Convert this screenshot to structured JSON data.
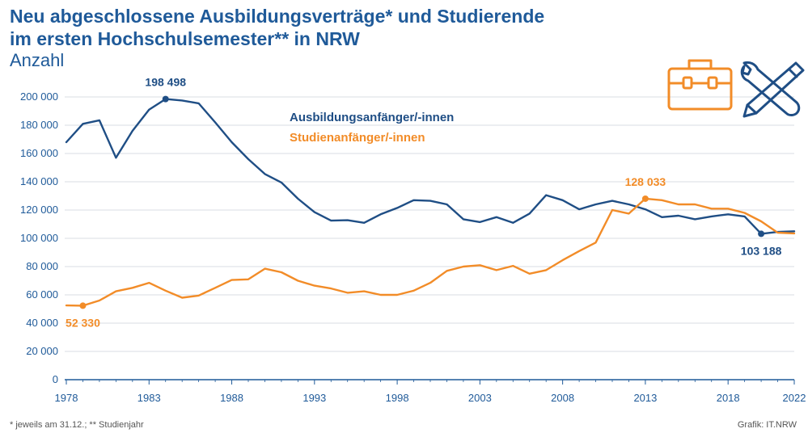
{
  "header": {
    "title_line1": "Neu abgeschlossene Ausbildungsverträge* und Studierende",
    "title_line2": "im ersten Hochschulsemester** in NRW",
    "subtitle": "Anzahl"
  },
  "footer": {
    "footnote": "* jeweils am 31.12.; ** Studienjahr",
    "credit": "Grafik: IT.NRW"
  },
  "icons": [
    "briefcase-icon",
    "tools-icon"
  ],
  "colors": {
    "blue": "#1f4e85",
    "orange": "#f28c28",
    "axis": "#1f5a99",
    "grid": "#d9dde3"
  },
  "chart_data": {
    "type": "line",
    "title": "Neu abgeschlossene Ausbildungsverträge* und Studierende im ersten Hochschulsemester** in NRW",
    "ylabel": "Anzahl",
    "xlim": [
      1978,
      2022
    ],
    "ylim": [
      0,
      200000
    ],
    "yticks": [
      0,
      20000,
      40000,
      60000,
      80000,
      100000,
      120000,
      140000,
      160000,
      180000,
      200000
    ],
    "ytick_labels": [
      "0",
      "20 000",
      "40 000",
      "60 000",
      "80 000",
      "100 000",
      "120 000",
      "140 000",
      "160 000",
      "180 000",
      "200 000"
    ],
    "xticks": [
      1978,
      1983,
      1988,
      1993,
      1998,
      2003,
      2008,
      2013,
      2018,
      2022
    ],
    "grid": true,
    "legend_position": "top-center",
    "series": [
      {
        "name": "Ausbildungsanfänger/-innen",
        "x": [
          1978,
          1979,
          1980,
          1981,
          1982,
          1983,
          1984,
          1985,
          1986,
          1987,
          1988,
          1989,
          1990,
          1991,
          1992,
          1993,
          1994,
          1995,
          1996,
          1997,
          1998,
          1999,
          2000,
          2001,
          2002,
          2003,
          2004,
          2005,
          2006,
          2007,
          2008,
          2009,
          2010,
          2011,
          2012,
          2013,
          2014,
          2015,
          2016,
          2017,
          2018,
          2019,
          2020,
          2021,
          2022
        ],
        "values": [
          168000,
          181000,
          183500,
          157000,
          176000,
          191000,
          198498,
          197500,
          195500,
          182000,
          168000,
          156000,
          145500,
          139500,
          128000,
          118500,
          112500,
          112800,
          111000,
          117000,
          121500,
          127000,
          126500,
          124000,
          113500,
          111500,
          115000,
          111000,
          117500,
          130500,
          127000,
          120500,
          124000,
          126500,
          124000,
          120500,
          115000,
          116000,
          113500,
          115500,
          117000,
          115500,
          103188,
          104500,
          105000
        ]
      },
      {
        "name": "Studienanfänger/-innen",
        "x": [
          1978,
          1979,
          1980,
          1981,
          1982,
          1983,
          1984,
          1985,
          1986,
          1987,
          1988,
          1989,
          1990,
          1991,
          1992,
          1993,
          1994,
          1995,
          1996,
          1997,
          1998,
          1999,
          2000,
          2001,
          2002,
          2003,
          2004,
          2005,
          2006,
          2007,
          2008,
          2009,
          2010,
          2011,
          2012,
          2013,
          2014,
          2015,
          2016,
          2017,
          2018,
          2019,
          2020,
          2021,
          2022
        ],
        "values": [
          52500,
          52330,
          56000,
          62500,
          65000,
          68500,
          63000,
          58000,
          59500,
          65000,
          70500,
          71000,
          78500,
          76000,
          70000,
          66500,
          64500,
          61500,
          62500,
          60000,
          60000,
          63000,
          68500,
          77000,
          80000,
          81000,
          77500,
          80500,
          75000,
          77500,
          84500,
          91000,
          97000,
          120000,
          117500,
          128033,
          127000,
          124000,
          124000,
          121000,
          121000,
          118000,
          112000,
          104000,
          103500
        ]
      }
    ],
    "annotations": [
      {
        "label": "198 498",
        "x": 1984,
        "y": 198498,
        "series": 0
      },
      {
        "label": "52 330",
        "x": 1979,
        "y": 52330,
        "series": 1
      },
      {
        "label": "128 033",
        "x": 2013,
        "y": 128033,
        "series": 1
      },
      {
        "label": "103 188",
        "x": 2020,
        "y": 103188,
        "series": 0
      }
    ]
  }
}
